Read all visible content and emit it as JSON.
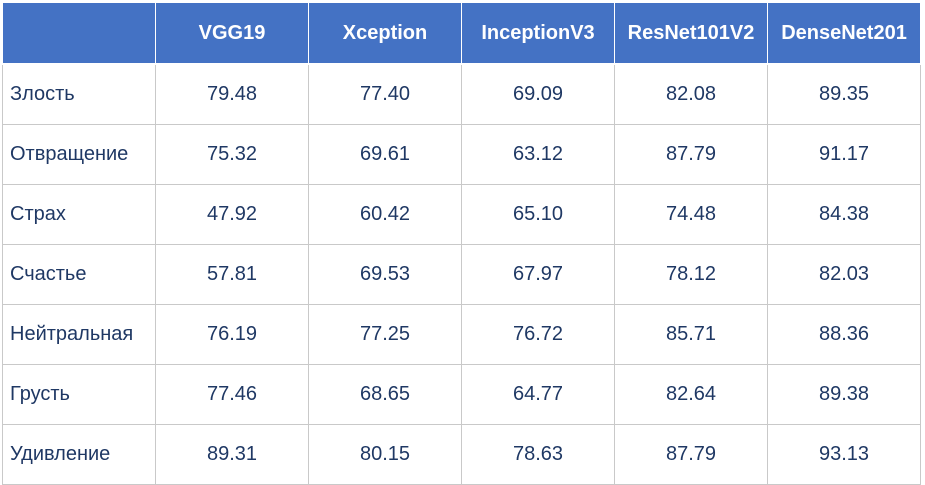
{
  "table": {
    "header": [
      "",
      "VGG19",
      "Xception",
      "InceptionV3",
      "ResNet101V2",
      "DenseNet201"
    ],
    "rows": [
      {
        "label": "Злость",
        "values": [
          "79.48",
          "77.40",
          "69.09",
          "82.08",
          "89.35"
        ]
      },
      {
        "label": "Отвращение",
        "values": [
          "75.32",
          "69.61",
          "63.12",
          "87.79",
          "91.17"
        ]
      },
      {
        "label": "Страх",
        "values": [
          "47.92",
          "60.42",
          "65.10",
          "74.48",
          "84.38"
        ]
      },
      {
        "label": "Счастье",
        "values": [
          "57.81",
          "69.53",
          "67.97",
          "78.12",
          "82.03"
        ]
      },
      {
        "label": "Нейтральная",
        "values": [
          "76.19",
          "77.25",
          "76.72",
          "85.71",
          "88.36"
        ]
      },
      {
        "label": "Грусть",
        "values": [
          "77.46",
          "68.65",
          "64.77",
          "82.64",
          "89.38"
        ]
      },
      {
        "label": "Удивление",
        "values": [
          "89.31",
          "80.15",
          "78.63",
          "87.79",
          "93.13"
        ]
      }
    ]
  },
  "colors": {
    "header_bg": "#4472c4",
    "header_text": "#ffffff",
    "body_text": "#1f3864",
    "border": "#c9c9c9"
  }
}
